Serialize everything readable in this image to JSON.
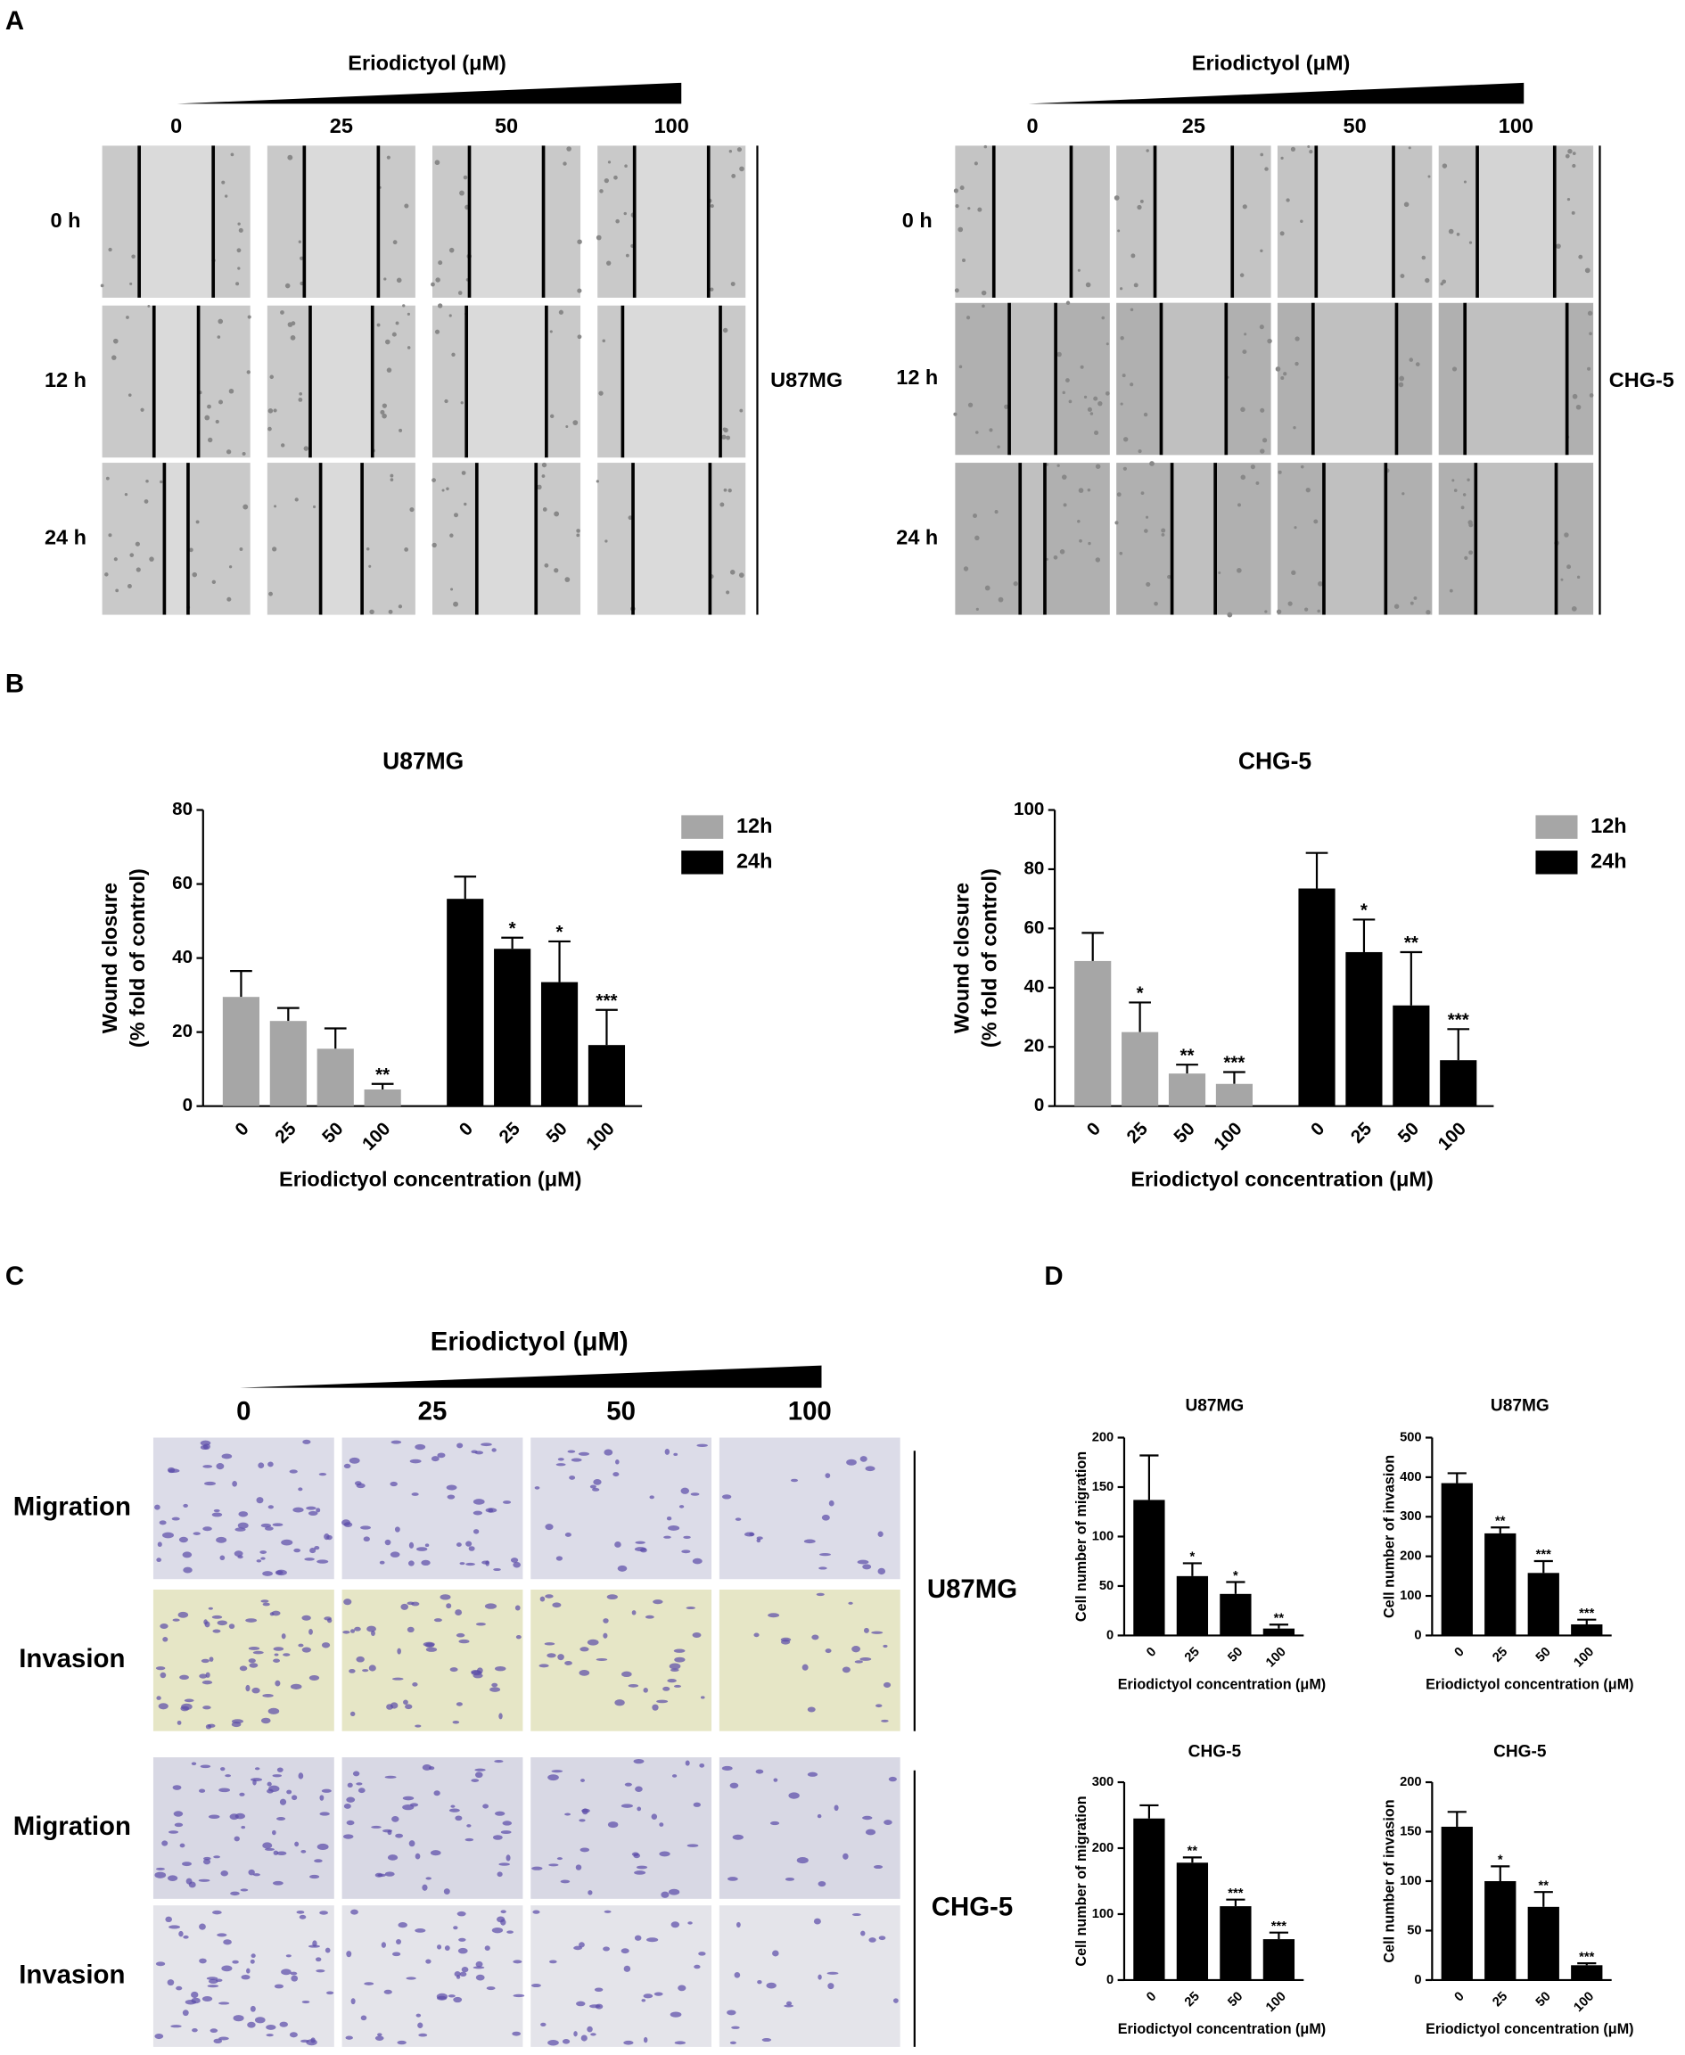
{
  "panel_labels": [
    "A",
    "B",
    "C",
    "D"
  ],
  "panel_a": [
    {
      "header": "Eriodictyol (μM)",
      "doses": [
        "0",
        "25",
        "50",
        "100"
      ],
      "times": [
        "0 h",
        "12 h",
        "24 h"
      ],
      "cell_line": "U87MG"
    },
    {
      "header": "Eriodictyol (μM)",
      "doses": [
        "0",
        "25",
        "50",
        "100"
      ],
      "times": [
        "0 h",
        "12 h",
        "24 h"
      ],
      "cell_line": "CHG-5"
    }
  ],
  "panel_c": {
    "header": "Eriodictyol (μM)",
    "doses": [
      "0",
      "25",
      "50",
      "100"
    ],
    "groups": [
      {
        "cell_line": "U87MG",
        "rows": [
          "Migration",
          "Invasion"
        ]
      },
      {
        "cell_line": "CHG-5",
        "rows": [
          "Migration",
          "Invasion"
        ]
      }
    ]
  },
  "chart_data": [
    {
      "type": "grouped_bar",
      "title": "U87MG",
      "xlabel": "Eriodictyol concentration (μM)",
      "ylabel": [
        "Wound closure",
        "(% fold of control)"
      ],
      "categories": [
        "0",
        "25",
        "50",
        "100"
      ],
      "ylim": [
        0,
        80
      ],
      "yticks": [
        0,
        20,
        40,
        60,
        80
      ],
      "legend": "upper right",
      "series": [
        {
          "name": "12h",
          "color": "#a6a6a6",
          "values": [
            29.5,
            23,
            15.5,
            4.5
          ],
          "errors": [
            7,
            3.5,
            5.5,
            1.5
          ],
          "sig": [
            null,
            null,
            null,
            "**"
          ]
        },
        {
          "name": "24h",
          "color": "#000000",
          "values": [
            56,
            42.5,
            33.5,
            16.5
          ],
          "errors": [
            6,
            3,
            11,
            9.5
          ],
          "sig": [
            null,
            "*",
            "*",
            "***"
          ]
        }
      ]
    },
    {
      "type": "grouped_bar",
      "title": "CHG-5",
      "xlabel": "Eriodictyol concentration (μM)",
      "ylabel": [
        "Wound closure",
        "(% fold of control)"
      ],
      "categories": [
        "0",
        "25",
        "50",
        "100"
      ],
      "ylim": [
        0,
        100
      ],
      "yticks": [
        0,
        20,
        40,
        60,
        80,
        100
      ],
      "legend": "upper right",
      "series": [
        {
          "name": "12h",
          "color": "#a6a6a6",
          "values": [
            49,
            25,
            11,
            7.5
          ],
          "errors": [
            9.5,
            10,
            3,
            4
          ],
          "sig": [
            null,
            "*",
            "**",
            "***"
          ]
        },
        {
          "name": "24h",
          "color": "#000000",
          "values": [
            73.5,
            52,
            34,
            15.5
          ],
          "errors": [
            12,
            11,
            18,
            10.5
          ],
          "sig": [
            null,
            "*",
            "**",
            "***"
          ]
        }
      ]
    },
    {
      "type": "bar",
      "title": "U87MG",
      "xlabel": "Eriodictyol concentration (μM)",
      "ylabel": [
        "Cell number of migration"
      ],
      "categories": [
        "0",
        "25",
        "50",
        "100"
      ],
      "ylim": [
        0,
        200
      ],
      "yticks": [
        0,
        50,
        100,
        150,
        200
      ],
      "color": "#000000",
      "values": [
        137,
        60,
        42,
        7
      ],
      "errors": [
        45,
        13,
        12,
        4
      ],
      "sig": [
        null,
        "*",
        "*",
        "**"
      ]
    },
    {
      "type": "bar",
      "title": "U87MG",
      "xlabel": "Eriodictyol concentration (μM)",
      "ylabel": [
        "Cell number of invasion"
      ],
      "categories": [
        "0",
        "25",
        "50",
        "100"
      ],
      "ylim": [
        0,
        500
      ],
      "yticks": [
        0,
        100,
        200,
        300,
        400,
        500
      ],
      "color": "#000000",
      "values": [
        385,
        258,
        158,
        28
      ],
      "errors": [
        25,
        15,
        30,
        12
      ],
      "sig": [
        null,
        "**",
        "***",
        "***"
      ]
    },
    {
      "type": "bar",
      "title": "CHG-5",
      "xlabel": "Eriodictyol concentration (μM)",
      "ylabel": [
        "Cell number of migration"
      ],
      "categories": [
        "0",
        "25",
        "50",
        "100"
      ],
      "ylim": [
        0,
        300
      ],
      "yticks": [
        0,
        100,
        200,
        300
      ],
      "color": "#000000",
      "values": [
        245,
        178,
        112,
        62
      ],
      "errors": [
        20,
        8,
        10,
        10
      ],
      "sig": [
        null,
        "**",
        "***",
        "***"
      ]
    },
    {
      "type": "bar",
      "title": "CHG-5",
      "xlabel": "Eriodictyol concentration (μM)",
      "ylabel": [
        "Cell number of invasion"
      ],
      "categories": [
        "0",
        "25",
        "50",
        "100"
      ],
      "ylim": [
        0,
        200
      ],
      "yticks": [
        0,
        50,
        100,
        150,
        200
      ],
      "color": "#000000",
      "values": [
        155,
        100,
        74,
        15
      ],
      "errors": [
        15,
        15,
        15,
        2
      ],
      "sig": [
        null,
        "*",
        "**",
        "***"
      ]
    }
  ]
}
